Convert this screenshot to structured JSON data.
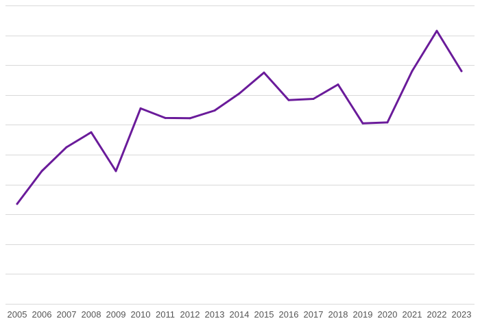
{
  "chart_data": {
    "type": "line",
    "title": "",
    "xlabel": "",
    "ylabel": "",
    "x": [
      "2005",
      "2006",
      "2007",
      "2008",
      "2009",
      "2010",
      "2011",
      "2012",
      "2013",
      "2014",
      "2015",
      "2016",
      "2017",
      "2018",
      "2019",
      "2020",
      "2021",
      "2022",
      "2023"
    ],
    "series": [
      {
        "values": [
          33.5,
          44.5,
          52.5,
          57.5,
          44.5,
          65.5,
          62.3,
          62.2,
          64.8,
          70.5,
          77.5,
          68.3,
          68.7,
          73.5,
          60.5,
          60.8,
          78.0,
          91.5,
          78.0
        ],
        "color": "#6a1b9a"
      }
    ],
    "ylim": [
      0,
      100
    ],
    "grid": true,
    "y_tick_labels_shown": false,
    "legend": "none"
  }
}
